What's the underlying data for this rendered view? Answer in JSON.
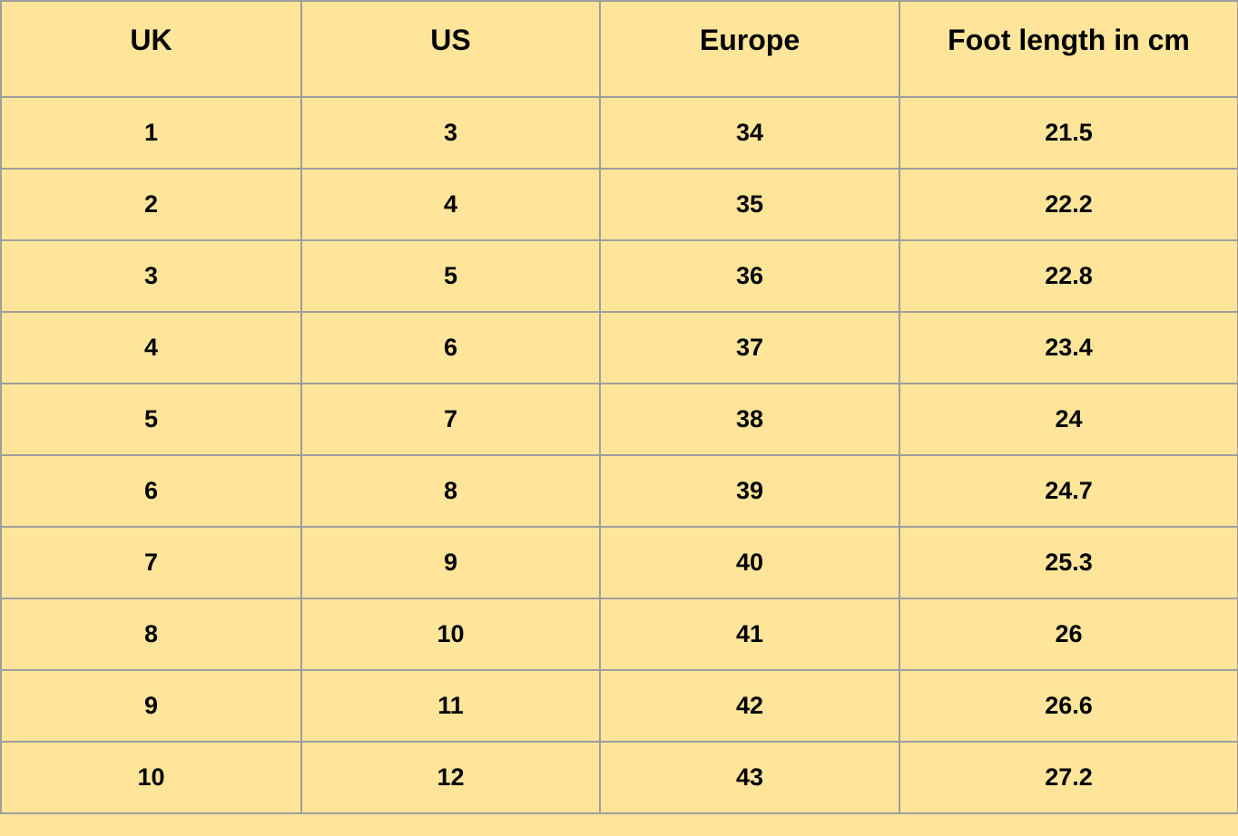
{
  "table": {
    "headers": [
      "UK",
      "US",
      "Europe",
      "Foot length in cm"
    ],
    "rows": [
      [
        "1",
        "3",
        "34",
        "21.5"
      ],
      [
        "2",
        "4",
        "35",
        "22.2"
      ],
      [
        "3",
        "5",
        "36",
        "22.8"
      ],
      [
        "4",
        "6",
        "37",
        "23.4"
      ],
      [
        "5",
        "7",
        "38",
        "24"
      ],
      [
        "6",
        "8",
        "39",
        "24.7"
      ],
      [
        "7",
        "9",
        "40",
        "25.3"
      ],
      [
        "8",
        "10",
        "41",
        "26"
      ],
      [
        "9",
        "11",
        "42",
        "26.6"
      ],
      [
        "10",
        "12",
        "43",
        "27.2"
      ]
    ],
    "colors": {
      "background": "#ffe599",
      "border": "#9e9e9e"
    }
  }
}
